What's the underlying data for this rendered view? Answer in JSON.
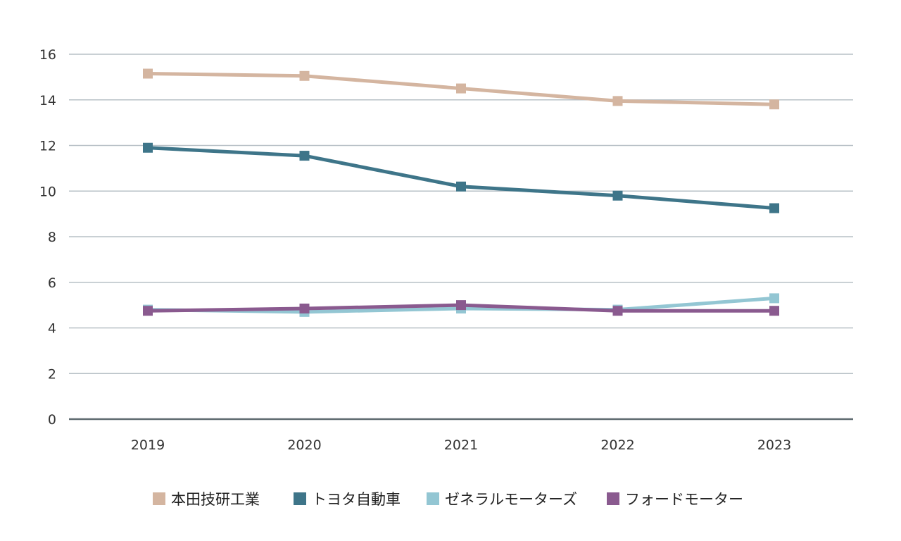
{
  "chart_data": {
    "type": "line",
    "title": "",
    "xlabel": "",
    "ylabel": "",
    "categories": [
      "2019",
      "2020",
      "2021",
      "2022",
      "2023"
    ],
    "ylim": [
      0,
      16
    ],
    "yticks": [
      0,
      2,
      4,
      6,
      8,
      10,
      12,
      14,
      16
    ],
    "grid": true,
    "legend_position": "bottom",
    "marker": "square",
    "series": [
      {
        "name": "本田技研工業",
        "color": "#d4b5a0",
        "values": [
          15.15,
          15.05,
          14.5,
          13.95,
          13.8
        ]
      },
      {
        "name": "トヨタ自動車",
        "color": "#3e7589",
        "values": [
          11.9,
          11.55,
          10.2,
          9.8,
          9.25
        ]
      },
      {
        "name": "ゼネラルモーターズ",
        "color": "#93c6d3",
        "values": [
          4.8,
          4.7,
          4.85,
          4.8,
          5.3
        ]
      },
      {
        "name": "フォードモーター",
        "color": "#8a5a8f",
        "values": [
          4.75,
          4.85,
          5.0,
          4.75,
          4.75
        ]
      }
    ]
  }
}
